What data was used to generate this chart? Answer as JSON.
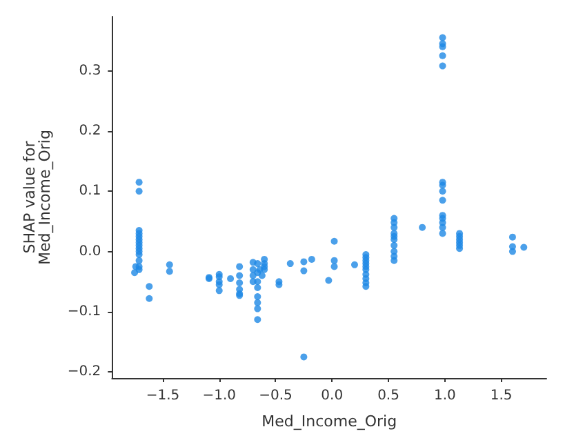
{
  "chart_data": {
    "type": "scatter",
    "xlabel": "Med_Income_Orig",
    "ylabel": "SHAP value for\nMed_Income_Orig",
    "xlim": [
      -1.95,
      1.9
    ],
    "ylim": [
      -0.21,
      0.39
    ],
    "xticks": [
      {
        "value": -1.5,
        "label": "−1.5"
      },
      {
        "value": -1.0,
        "label": "−1.0"
      },
      {
        "value": -0.5,
        "label": "−0.5"
      },
      {
        "value": 0,
        "label": "0.0"
      },
      {
        "value": 0.5,
        "label": "0.5"
      },
      {
        "value": 1.0,
        "label": "1.0"
      },
      {
        "value": 1.5,
        "label": "1.5"
      }
    ],
    "yticks": [
      {
        "value": -0.2,
        "label": "−0.2"
      },
      {
        "value": -0.1,
        "label": "−0.1"
      },
      {
        "value": 0,
        "label": "0.0"
      },
      {
        "value": 0.1,
        "label": "0.1"
      },
      {
        "value": 0.2,
        "label": "0.2"
      },
      {
        "value": 0.3,
        "label": "0.3"
      }
    ],
    "marker": "circle",
    "series": [
      {
        "color": "#1e88e5",
        "x": [
          -1.71,
          -1.71,
          -1.71,
          -1.71,
          -1.71,
          -1.71,
          -1.71,
          -1.71,
          -1.71,
          -1.71,
          -1.71,
          -1.71,
          -1.71,
          -1.71,
          -1.74,
          -1.75,
          -1.62,
          -1.62,
          -1.44,
          -1.44,
          -1.09,
          -1.09,
          -1.0,
          -1.0,
          -1.0,
          -1.0,
          -1.0,
          -0.9,
          -0.82,
          -0.82,
          -0.82,
          -0.82,
          -0.82,
          -0.82,
          -0.7,
          -0.7,
          -0.7,
          -0.7,
          -0.66,
          -0.66,
          -0.66,
          -0.66,
          -0.66,
          -0.66,
          -0.66,
          -0.66,
          -0.64,
          -0.62,
          -0.6,
          -0.6,
          -0.6,
          -0.6,
          -0.47,
          -0.47,
          -0.37,
          -0.25,
          -0.25,
          -0.25,
          -0.18,
          -0.03,
          0.02,
          0.02,
          0.02,
          0.2,
          0.3,
          0.3,
          0.3,
          0.3,
          0.3,
          0.3,
          0.3,
          0.3,
          0.3,
          0.3,
          0.55,
          0.55,
          0.55,
          0.55,
          0.55,
          0.55,
          0.55,
          0.55,
          0.55,
          0.55,
          0.8,
          0.98,
          0.98,
          0.98,
          0.98,
          0.98,
          0.98,
          0.98,
          0.98,
          0.98,
          0.98,
          0.98,
          0.98,
          0.98,
          0.98,
          1.13,
          1.13,
          1.13,
          1.13,
          1.13,
          1.13,
          1.6,
          1.6,
          1.6,
          1.7
        ],
        "values": [
          0.115,
          0.1,
          0.035,
          0.03,
          0.025,
          0.02,
          0.015,
          0.01,
          0.005,
          0.0,
          -0.005,
          -0.015,
          -0.025,
          -0.03,
          -0.025,
          -0.035,
          -0.058,
          -0.078,
          -0.022,
          -0.033,
          -0.043,
          -0.045,
          -0.038,
          -0.042,
          -0.05,
          -0.055,
          -0.065,
          -0.045,
          -0.025,
          -0.04,
          -0.052,
          -0.063,
          -0.07,
          -0.073,
          -0.018,
          -0.03,
          -0.04,
          -0.05,
          -0.02,
          -0.035,
          -0.05,
          -0.06,
          -0.075,
          -0.085,
          -0.095,
          -0.113,
          -0.03,
          -0.04,
          -0.013,
          -0.02,
          -0.025,
          -0.03,
          -0.05,
          -0.055,
          -0.02,
          -0.017,
          -0.032,
          -0.175,
          -0.013,
          -0.048,
          0.017,
          -0.015,
          -0.025,
          -0.022,
          -0.005,
          -0.01,
          -0.015,
          -0.02,
          -0.025,
          -0.03,
          -0.038,
          -0.045,
          -0.052,
          -0.058,
          0.055,
          0.048,
          0.04,
          0.03,
          0.025,
          0.02,
          0.01,
          0.0,
          -0.008,
          -0.015,
          0.04,
          0.355,
          0.345,
          0.34,
          0.325,
          0.308,
          0.115,
          0.11,
          0.1,
          0.085,
          0.06,
          0.055,
          0.048,
          0.04,
          0.03,
          0.03,
          0.025,
          0.02,
          0.015,
          0.01,
          0.005,
          0.024,
          0.008,
          0.0,
          0.007
        ]
      }
    ]
  }
}
